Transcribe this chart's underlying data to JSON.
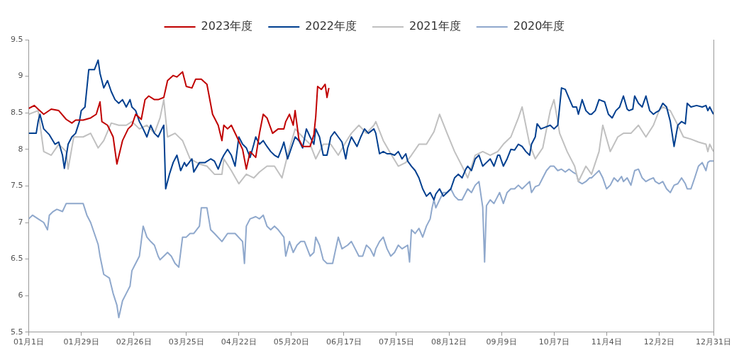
{
  "chart_data": {
    "type": "line",
    "xlim": [
      "--01-01",
      "--12-31"
    ],
    "xticks": [
      {
        "value": "--01-01",
        "label": "01月1日"
      },
      {
        "value": "--01-29",
        "label": "01月29日"
      },
      {
        "value": "--02-26",
        "label": "02月26日"
      },
      {
        "value": "--03-25",
        "label": "03月25日"
      },
      {
        "value": "--04-22",
        "label": "04月22日"
      },
      {
        "value": "--05-20",
        "label": "05月20日"
      },
      {
        "value": "--06-17",
        "label": "06月17日"
      },
      {
        "value": "--07-15",
        "label": "07月15日"
      },
      {
        "value": "--08-12",
        "label": "08月12日"
      },
      {
        "value": "--09-09",
        "label": "09月9日"
      },
      {
        "value": "--10-07",
        "label": "10月7日"
      },
      {
        "value": "--11-04",
        "label": "11月4日"
      },
      {
        "value": "--12-02",
        "label": "12月2日"
      },
      {
        "value": "--12-31",
        "label": "12月31日"
      }
    ],
    "ylim": [
      5.5,
      9.5
    ],
    "yticks": [
      5.5,
      6,
      6.5,
      7,
      7.5,
      8,
      8.5,
      9,
      9.5
    ],
    "grid": false,
    "legend": "top",
    "marker": "none",
    "line_style": "solid",
    "series": [
      {
        "name": "2023年度",
        "color": "#c00000",
        "x": [
          "--01-01",
          "--01-04",
          "--01-06",
          "--01-09",
          "--01-13",
          "--01-17",
          "--01-21",
          "--01-24",
          "--01-26",
          "--01-30",
          "--02-03",
          "--02-06",
          "--02-08",
          "--02-09",
          "--02-12",
          "--02-15",
          "--02-17",
          "--02-20",
          "--02-23",
          "--02-25",
          "--02-27",
          "--03-01",
          "--03-03",
          "--03-05",
          "--03-08",
          "--03-10",
          "--03-13",
          "--03-15",
          "--03-18",
          "--03-20",
          "--03-23",
          "--03-25",
          "--03-28",
          "--03-30",
          "--04-02",
          "--04-05",
          "--04-08",
          "--04-11",
          "--04-13",
          "--04-14",
          "--04-16",
          "--04-18",
          "--04-21",
          "--04-24",
          "--04-26",
          "--04-28",
          "--05-01",
          "--05-03",
          "--05-05",
          "--05-07",
          "--05-10",
          "--05-13",
          "--05-16",
          "--05-17",
          "--05-19",
          "--05-21",
          "--05-22",
          "--05-24",
          "--05-26",
          "--05-30",
          "--06-01",
          "--06-02",
          "--06-03",
          "--06-05",
          "--06-07",
          "--06-08",
          "--06-09"
        ],
        "values": [
          8.56,
          8.6,
          8.55,
          8.48,
          8.55,
          8.53,
          8.41,
          8.36,
          8.4,
          8.4,
          8.43,
          8.48,
          8.65,
          8.38,
          8.33,
          8.17,
          7.8,
          8.12,
          8.28,
          8.33,
          8.48,
          8.41,
          8.68,
          8.73,
          8.68,
          8.68,
          8.71,
          8.94,
          9.01,
          8.99,
          9.06,
          8.86,
          8.84,
          8.96,
          8.96,
          8.89,
          8.48,
          8.33,
          8.12,
          8.33,
          8.28,
          8.33,
          8.17,
          8.0,
          7.73,
          7.97,
          7.89,
          8.22,
          8.48,
          8.43,
          8.22,
          8.28,
          8.28,
          8.38,
          8.48,
          8.33,
          8.53,
          8.14,
          8.04,
          8.04,
          8.2,
          8.45,
          8.86,
          8.82,
          8.89,
          8.71,
          8.84
        ]
      },
      {
        "name": "2022年度",
        "color": "#003f8f",
        "x": [
          "--01-01",
          "--01-05",
          "--01-06",
          "--01-07",
          "--01-09",
          "--01-12",
          "--01-15",
          "--01-17",
          "--01-19",
          "--01-20",
          "--01-22",
          "--01-24",
          "--01-26",
          "--01-28",
          "--01-29",
          "--01-31",
          "--02-02",
          "--02-05",
          "--02-07",
          "--02-08",
          "--02-10",
          "--02-12",
          "--02-14",
          "--02-16",
          "--02-18",
          "--02-20",
          "--02-22",
          "--02-24",
          "--02-25",
          "--02-27",
          "--02-29",
          "--03-02",
          "--03-04",
          "--03-06",
          "--03-08",
          "--03-10",
          "--03-12",
          "--03-13",
          "--03-14",
          "--03-16",
          "--03-18",
          "--03-20",
          "--03-22",
          "--03-24",
          "--03-25",
          "--03-28",
          "--03-29",
          "--04-01",
          "--04-04",
          "--04-07",
          "--04-09",
          "--04-11",
          "--04-13",
          "--04-14",
          "--04-16",
          "--04-18",
          "--04-20",
          "--04-22",
          "--04-24",
          "--04-26",
          "--04-28",
          "--04-30",
          "--05-01",
          "--05-03",
          "--05-05",
          "--05-07",
          "--05-09",
          "--05-11",
          "--05-13",
          "--05-15",
          "--05-16",
          "--05-18",
          "--05-20",
          "--05-22",
          "--05-24",
          "--05-26",
          "--05-28",
          "--05-30",
          "--06-01",
          "--06-02",
          "--06-04",
          "--06-06",
          "--06-08",
          "--06-10",
          "--06-12",
          "--06-14",
          "--06-16",
          "--06-18",
          "--06-19",
          "--06-21",
          "--06-24",
          "--06-26",
          "--06-28",
          "--06-30",
          "--07-03",
          "--07-04",
          "--07-06",
          "--07-08",
          "--07-10",
          "--07-12",
          "--07-14",
          "--07-16",
          "--07-18",
          "--07-20",
          "--07-21",
          "--07-23",
          "--07-25",
          "--07-27",
          "--07-29",
          "--07-31",
          "--08-02",
          "--08-04",
          "--08-05",
          "--08-07",
          "--08-09",
          "--08-11",
          "--08-13",
          "--08-15",
          "--08-17",
          "--08-19",
          "--08-21",
          "--08-22",
          "--08-24",
          "--08-26",
          "--08-28",
          "--08-30",
          "--09-01",
          "--09-03",
          "--09-05",
          "--09-07",
          "--09-08",
          "--09-10",
          "--09-12",
          "--09-14",
          "--09-16",
          "--09-18",
          "--09-20",
          "--09-22",
          "--09-24",
          "--09-25",
          "--09-27",
          "--09-28",
          "--09-30",
          "--10-02",
          "--10-05",
          "--10-07",
          "--10-09",
          "--10-10",
          "--10-11",
          "--10-13",
          "--10-15",
          "--10-17",
          "--10-19",
          "--10-20",
          "--10-22",
          "--10-24",
          "--10-26",
          "--10-27",
          "--10-29",
          "--10-31",
          "--11-03",
          "--11-05",
          "--11-07",
          "--11-09",
          "--11-11",
          "--11-13",
          "--11-15",
          "--11-16",
          "--11-18",
          "--11-19",
          "--11-21",
          "--11-23",
          "--11-25",
          "--11-27",
          "--11-29",
          "--11-30",
          "--12-02",
          "--12-04",
          "--12-06",
          "--12-08",
          "--12-10",
          "--12-12",
          "--12-14",
          "--12-16",
          "--12-17",
          "--12-19",
          "--12-22",
          "--12-25",
          "--12-27",
          "--12-28",
          "--12-29",
          "--12-31"
        ],
        "values": [
          8.22,
          8.22,
          8.38,
          8.48,
          8.28,
          8.2,
          8.07,
          8.1,
          7.92,
          7.74,
          8.07,
          8.17,
          8.22,
          8.38,
          8.53,
          8.58,
          9.09,
          9.09,
          9.22,
          9.04,
          8.84,
          8.94,
          8.79,
          8.68,
          8.63,
          8.68,
          8.58,
          8.68,
          8.58,
          8.53,
          8.38,
          8.28,
          8.17,
          8.33,
          8.22,
          8.17,
          8.28,
          8.33,
          7.46,
          7.66,
          7.82,
          7.92,
          7.71,
          7.82,
          7.77,
          7.87,
          7.69,
          7.82,
          7.82,
          7.87,
          7.84,
          7.73,
          7.87,
          7.92,
          8.0,
          7.92,
          7.77,
          8.17,
          8.07,
          8.02,
          7.89,
          8.07,
          8.17,
          8.07,
          8.12,
          8.04,
          7.97,
          7.92,
          7.89,
          8.02,
          8.1,
          7.87,
          8.02,
          8.17,
          8.12,
          8.02,
          8.28,
          8.17,
          8.07,
          8.28,
          8.17,
          7.92,
          7.92,
          8.17,
          8.24,
          8.17,
          8.1,
          7.87,
          8.02,
          8.17,
          8.04,
          8.17,
          8.28,
          8.22,
          8.28,
          8.22,
          7.94,
          7.97,
          7.94,
          7.94,
          7.92,
          7.97,
          7.87,
          7.94,
          7.84,
          7.77,
          7.71,
          7.61,
          7.46,
          7.36,
          7.41,
          7.31,
          7.39,
          7.46,
          7.36,
          7.41,
          7.46,
          7.61,
          7.66,
          7.61,
          7.73,
          7.77,
          7.71,
          7.87,
          7.92,
          7.77,
          7.82,
          7.87,
          7.77,
          7.92,
          7.92,
          7.77,
          7.87,
          8.0,
          7.99,
          8.07,
          8.04,
          7.97,
          7.92,
          8.07,
          8.17,
          8.35,
          8.28,
          8.3,
          8.33,
          8.28,
          8.33,
          8.58,
          8.84,
          8.82,
          8.7,
          8.58,
          8.58,
          8.48,
          8.68,
          8.53,
          8.48,
          8.48,
          8.53,
          8.68,
          8.65,
          8.48,
          8.43,
          8.53,
          8.58,
          8.73,
          8.55,
          8.53,
          8.55,
          8.73,
          8.63,
          8.58,
          8.73,
          8.53,
          8.48,
          8.5,
          8.53,
          8.63,
          8.58,
          8.38,
          8.04,
          8.33,
          8.38,
          8.35,
          8.63,
          8.58,
          8.6,
          8.58,
          8.6,
          8.53,
          8.58,
          8.48
        ]
      },
      {
        "name": "2021年度",
        "color": "#c0c0c0",
        "x": [
          "--01-01",
          "--01-06",
          "--01-09",
          "--01-13",
          "--01-17",
          "--01-21",
          "--01-22",
          "--01-25",
          "--01-30",
          "--02-03",
          "--02-07",
          "--02-10",
          "--02-14",
          "--02-18",
          "--02-22",
          "--02-25",
          "--02-29",
          "--03-04",
          "--03-08",
          "--03-11",
          "--03-13",
          "--03-15",
          "--03-19",
          "--03-23",
          "--03-27",
          "--04-01",
          "--04-05",
          "--04-09",
          "--04-13",
          "--04-14",
          "--04-18",
          "--04-22",
          "--04-26",
          "--04-30",
          "--05-03",
          "--05-07",
          "--05-11",
          "--05-15",
          "--05-18",
          "--05-22",
          "--05-26",
          "--05-30",
          "--06-02",
          "--06-06",
          "--06-10",
          "--06-14",
          "--06-18",
          "--06-21",
          "--06-25",
          "--06-29",
          "--07-03",
          "--07-04",
          "--07-08",
          "--07-12",
          "--07-16",
          "--07-20",
          "--07-23",
          "--07-27",
          "--07-31",
          "--08-04",
          "--08-07",
          "--08-11",
          "--08-15",
          "--08-19",
          "--08-22",
          "--08-26",
          "--08-30",
          "--09-03",
          "--09-07",
          "--09-10",
          "--09-14",
          "--09-18",
          "--09-20",
          "--09-24",
          "--09-27",
          "--10-01",
          "--10-05",
          "--10-07",
          "--10-10",
          "--10-14",
          "--10-18",
          "--10-20",
          "--10-24",
          "--10-27",
          "--10-31",
          "--11-02",
          "--11-06",
          "--11-10",
          "--11-13",
          "--11-17",
          "--11-21",
          "--11-25",
          "--11-29",
          "--12-02",
          "--12-04",
          "--12-08",
          "--12-12",
          "--12-15",
          "--12-19",
          "--12-23",
          "--12-27",
          "--12-28",
          "--12-29",
          "--12-31"
        ],
        "values": [
          8.48,
          8.53,
          7.97,
          7.92,
          8.07,
          7.97,
          7.73,
          8.17,
          8.17,
          8.22,
          8.02,
          8.12,
          8.36,
          8.33,
          8.33,
          8.38,
          8.28,
          8.33,
          8.22,
          8.43,
          8.68,
          8.17,
          8.22,
          8.12,
          7.87,
          7.8,
          7.77,
          7.66,
          7.66,
          7.87,
          7.71,
          7.53,
          7.66,
          7.61,
          7.69,
          7.77,
          7.77,
          7.61,
          7.92,
          8.28,
          8.17,
          8.07,
          7.87,
          8.07,
          8.07,
          7.92,
          8.1,
          8.22,
          8.33,
          8.22,
          8.33,
          8.38,
          8.12,
          7.94,
          7.77,
          7.82,
          7.92,
          8.07,
          8.07,
          8.24,
          8.48,
          8.22,
          7.97,
          7.77,
          7.61,
          7.92,
          7.97,
          7.92,
          7.97,
          8.07,
          8.17,
          8.43,
          8.58,
          8.07,
          7.87,
          8.02,
          8.53,
          8.68,
          8.22,
          7.97,
          7.77,
          7.56,
          7.77,
          7.66,
          7.97,
          8.33,
          7.97,
          8.17,
          8.22,
          8.22,
          8.33,
          8.17,
          8.33,
          8.53,
          8.58,
          8.53,
          8.33,
          8.17,
          8.14,
          8.1,
          8.07,
          7.97,
          8.07,
          7.97
        ]
      },
      {
        "name": "2020年度",
        "color": "#8fa8cc",
        "x": [
          "--01-01",
          "--01-03",
          "--01-06",
          "--01-09",
          "--01-10",
          "--01-11",
          "--01-12",
          "--01-14",
          "--01-16",
          "--01-19",
          "--01-21",
          "--01-25",
          "--01-30",
          "--02-01",
          "--02-03",
          "--02-05",
          "--02-07",
          "--02-08",
          "--02-10",
          "--02-13",
          "--02-15",
          "--02-17",
          "--02-18",
          "--02-20",
          "--02-22",
          "--02-24",
          "--02-25",
          "--02-27",
          "--02-29",
          "--03-02",
          "--03-04",
          "--03-06",
          "--03-08",
          "--03-10",
          "--03-11",
          "--03-13",
          "--03-15",
          "--03-17",
          "--03-19",
          "--03-21",
          "--03-23",
          "--03-25",
          "--03-27",
          "--03-29",
          "--04-01",
          "--04-02",
          "--04-05",
          "--04-07",
          "--04-09",
          "--04-13",
          "--04-16",
          "--04-20",
          "--04-24",
          "--04-25",
          "--04-26",
          "--04-28",
          "--05-01",
          "--05-03",
          "--05-05",
          "--05-07",
          "--05-09",
          "--05-11",
          "--05-13",
          "--05-16",
          "--05-17",
          "--05-19",
          "--05-21",
          "--05-23",
          "--05-25",
          "--05-27",
          "--05-30",
          "--06-01",
          "--06-02",
          "--06-04",
          "--06-06",
          "--06-08",
          "--06-11",
          "--06-14",
          "--06-16",
          "--06-19",
          "--06-21",
          "--06-23",
          "--06-25",
          "--06-27",
          "--06-29",
          "--07-01",
          "--07-03",
          "--07-04",
          "--07-06",
          "--07-08",
          "--07-10",
          "--07-12",
          "--07-14",
          "--07-16",
          "--07-18",
          "--07-21",
          "--07-22",
          "--07-23",
          "--07-25",
          "--07-27",
          "--07-29",
          "--07-31",
          "--08-02",
          "--08-03",
          "--08-04",
          "--08-05",
          "--08-07",
          "--08-09",
          "--08-11",
          "--08-13",
          "--08-15",
          "--08-17",
          "--08-19",
          "--08-21",
          "--08-22",
          "--08-24",
          "--08-26",
          "--08-28",
          "--08-30",
          "--08-31",
          "--09-01",
          "--09-03",
          "--09-05",
          "--09-07",
          "--09-08",
          "--09-10",
          "--09-12",
          "--09-14",
          "--09-16",
          "--09-18",
          "--09-20",
          "--09-22",
          "--09-24",
          "--09-25",
          "--09-27",
          "--09-29",
          "--10-01",
          "--10-03",
          "--10-05",
          "--10-07",
          "--10-09",
          "--10-11",
          "--10-13",
          "--10-15",
          "--10-17",
          "--10-19",
          "--10-20",
          "--10-22",
          "--10-24",
          "--10-26",
          "--10-27",
          "--10-29",
          "--10-31",
          "--11-02",
          "--11-04",
          "--11-06",
          "--11-08",
          "--11-10",
          "--11-12",
          "--11-13",
          "--11-15",
          "--11-17",
          "--11-19",
          "--11-21",
          "--11-23",
          "--11-25",
          "--11-27",
          "--11-29",
          "--11-30",
          "--12-02",
          "--12-04",
          "--12-06",
          "--12-08",
          "--12-10",
          "--12-12",
          "--12-14",
          "--12-16",
          "--12-17",
          "--12-19",
          "--12-21",
          "--12-23",
          "--12-25",
          "--12-27",
          "--12-28",
          "--12-29",
          "--12-31"
        ],
        "values": [
          7.05,
          7.1,
          7.05,
          7.0,
          6.95,
          6.9,
          7.1,
          7.15,
          7.18,
          7.15,
          7.26,
          7.26,
          7.26,
          7.1,
          7.0,
          6.85,
          6.7,
          6.54,
          6.29,
          6.24,
          6.03,
          5.87,
          5.7,
          5.93,
          6.03,
          6.13,
          6.34,
          6.44,
          6.54,
          6.95,
          6.8,
          6.74,
          6.69,
          6.54,
          6.49,
          6.54,
          6.59,
          6.54,
          6.44,
          6.39,
          6.8,
          6.8,
          6.85,
          6.85,
          6.95,
          7.2,
          7.2,
          6.9,
          6.85,
          6.74,
          6.85,
          6.85,
          6.74,
          6.44,
          6.95,
          7.05,
          7.08,
          7.05,
          7.1,
          6.95,
          6.9,
          6.95,
          6.9,
          6.8,
          6.54,
          6.74,
          6.59,
          6.69,
          6.74,
          6.74,
          6.54,
          6.59,
          6.8,
          6.69,
          6.49,
          6.44,
          6.44,
          6.8,
          6.64,
          6.69,
          6.74,
          6.64,
          6.54,
          6.54,
          6.69,
          6.64,
          6.54,
          6.64,
          6.74,
          6.8,
          6.64,
          6.54,
          6.59,
          6.69,
          6.64,
          6.69,
          6.46,
          6.9,
          6.85,
          6.92,
          6.8,
          6.95,
          7.05,
          7.2,
          7.31,
          7.2,
          7.31,
          7.41,
          7.41,
          7.46,
          7.36,
          7.31,
          7.31,
          7.41,
          7.46,
          7.41,
          7.51,
          7.56,
          7.21,
          6.46,
          7.23,
          7.31,
          7.26,
          7.36,
          7.41,
          7.26,
          7.41,
          7.46,
          7.46,
          7.51,
          7.46,
          7.51,
          7.56,
          7.41,
          7.49,
          7.51,
          7.61,
          7.71,
          7.77,
          7.77,
          7.71,
          7.73,
          7.69,
          7.73,
          7.69,
          7.66,
          7.56,
          7.53,
          7.56,
          7.61,
          7.61,
          7.66,
          7.71,
          7.61,
          7.46,
          7.51,
          7.61,
          7.56,
          7.63,
          7.56,
          7.61,
          7.51,
          7.71,
          7.73,
          7.61,
          7.56,
          7.59,
          7.61,
          7.56,
          7.53,
          7.56,
          7.46,
          7.41,
          7.51,
          7.53,
          7.61,
          7.53,
          7.46,
          7.46,
          7.61,
          7.77,
          7.82,
          7.71,
          7.82,
          7.84,
          7.84
        ]
      }
    ]
  }
}
